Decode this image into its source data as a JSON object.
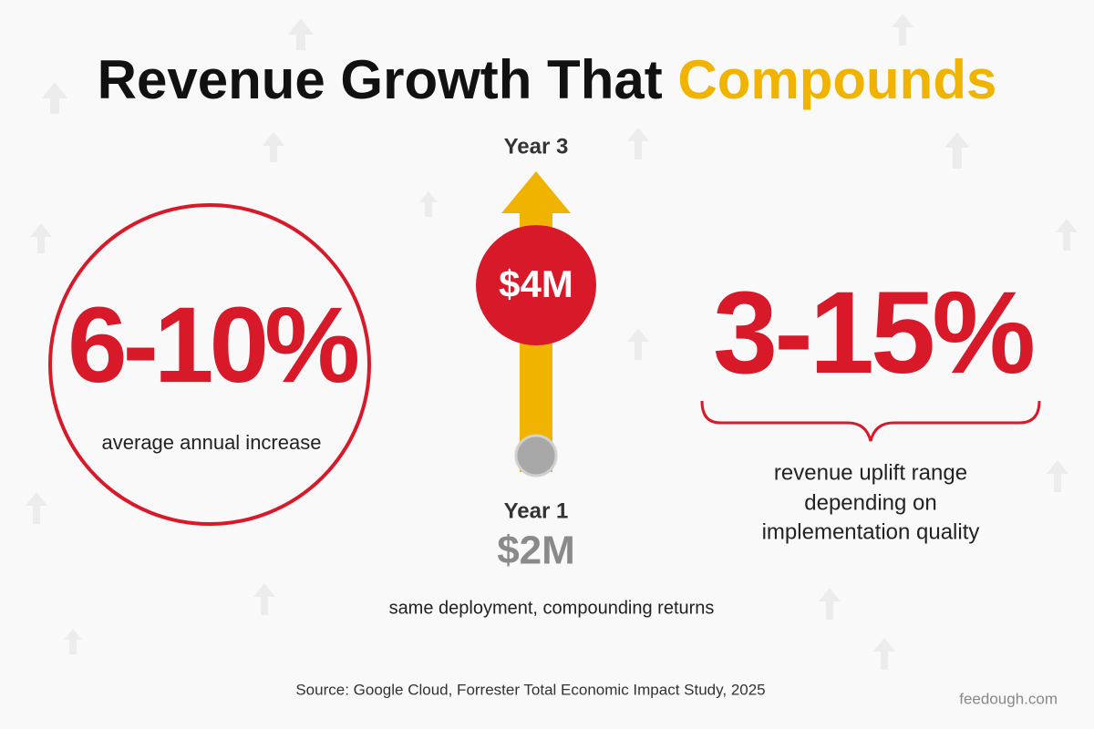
{
  "title": {
    "main": "Revenue Growth That",
    "highlight": "Compounds"
  },
  "left": {
    "value": "6-10%",
    "caption": "average annual increase"
  },
  "center": {
    "top_label": "Year 3",
    "top_value": "$4M",
    "bottom_label": "Year 1",
    "bottom_value": "$2M",
    "caption": "same deployment, compounding returns"
  },
  "right": {
    "value": "3-15%",
    "caption_lines": [
      "revenue uplift range",
      "depending on",
      "implementation quality"
    ]
  },
  "source": "Source: Google Cloud, Forrester Total Economic Impact Study, 2025",
  "brand": "feedough.com"
}
